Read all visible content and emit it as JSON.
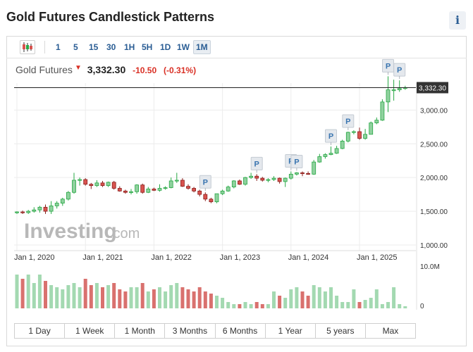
{
  "header": {
    "title": "Gold Futures Candlestick Patterns",
    "info_icon": "i"
  },
  "toolbar": {
    "chart_type_icon": "candlestick-icon",
    "intervals": [
      "1",
      "5",
      "15",
      "30",
      "1H",
      "5H",
      "1D",
      "1W",
      "1M"
    ],
    "active_interval": "1M"
  },
  "quote": {
    "name": "Gold Futures",
    "price": "3,332.30",
    "change": "-10.50",
    "change_pct": "(-0.31%)",
    "direction": "down"
  },
  "range_buttons": [
    "1 Day",
    "1 Week",
    "1 Month",
    "3 Months",
    "6 Months",
    "1 Year",
    "5 years",
    "Max"
  ],
  "watermark": {
    "brand": "Investing",
    "suffix": ".com"
  },
  "colors": {
    "up": "#8fd19e",
    "up_border": "#27a844",
    "down": "#d9534f",
    "vol_up": "#a3d9b1",
    "vol_down": "#d9716e",
    "price_line": "#222222"
  },
  "chart_data": {
    "type": "candlestick",
    "title": "",
    "ylim": [
      1000,
      3400
    ],
    "y_ticks": [
      "1,000.00",
      "1,500.00",
      "2,000.00",
      "2,500.00",
      "3,000.00"
    ],
    "y_tick_values": [
      1000,
      1500,
      2000,
      2500,
      3000
    ],
    "x_ticks": [
      "Jan 1, 2020",
      "Jan 1, 2021",
      "Jan 1, 2022",
      "Jan 1, 2023",
      "Jan 1, 2024",
      "Jan 1, 2025"
    ],
    "x_tick_index": [
      0,
      12,
      24,
      36,
      48,
      60
    ],
    "last_price": 3332.3,
    "last_price_label": "3,332.30",
    "volume_max_label": "10.0M",
    "volume_zero_label": "0",
    "pattern_marker_label": "P",
    "pattern_marker_index": [
      33,
      42,
      48,
      49,
      55,
      58,
      65,
      67
    ],
    "candles": [
      {
        "o": 1480,
        "h": 1500,
        "l": 1460,
        "c": 1490,
        "v": 8.0
      },
      {
        "o": 1490,
        "h": 1510,
        "l": 1460,
        "c": 1480,
        "v": 7.0
      },
      {
        "o": 1480,
        "h": 1520,
        "l": 1460,
        "c": 1500,
        "v": 8.0
      },
      {
        "o": 1500,
        "h": 1560,
        "l": 1480,
        "c": 1520,
        "v": 6.0
      },
      {
        "o": 1520,
        "h": 1580,
        "l": 1480,
        "c": 1560,
        "v": 8.0
      },
      {
        "o": 1560,
        "h": 1600,
        "l": 1460,
        "c": 1500,
        "v": 6.5
      },
      {
        "o": 1500,
        "h": 1650,
        "l": 1460,
        "c": 1580,
        "v": 5.5
      },
      {
        "o": 1580,
        "h": 1650,
        "l": 1540,
        "c": 1620,
        "v": 5.0
      },
      {
        "o": 1620,
        "h": 1700,
        "l": 1580,
        "c": 1680,
        "v": 4.5
      },
      {
        "o": 1680,
        "h": 1800,
        "l": 1660,
        "c": 1780,
        "v": 5.5
      },
      {
        "o": 1780,
        "h": 2070,
        "l": 1760,
        "c": 1960,
        "v": 6.0
      },
      {
        "o": 1960,
        "h": 2000,
        "l": 1880,
        "c": 1970,
        "v": 5.0
      },
      {
        "o": 1970,
        "h": 1990,
        "l": 1880,
        "c": 1900,
        "v": 7.0
      },
      {
        "o": 1900,
        "h": 1920,
        "l": 1830,
        "c": 1880,
        "v": 5.5
      },
      {
        "o": 1880,
        "h": 1960,
        "l": 1860,
        "c": 1920,
        "v": 6.0
      },
      {
        "o": 1920,
        "h": 1950,
        "l": 1860,
        "c": 1880,
        "v": 5.0
      },
      {
        "o": 1880,
        "h": 1940,
        "l": 1860,
        "c": 1930,
        "v": 5.5
      },
      {
        "o": 1930,
        "h": 1950,
        "l": 1820,
        "c": 1840,
        "v": 6.0
      },
      {
        "o": 1840,
        "h": 1870,
        "l": 1790,
        "c": 1800,
        "v": 4.5
      },
      {
        "o": 1800,
        "h": 1820,
        "l": 1760,
        "c": 1780,
        "v": 4.0
      },
      {
        "o": 1780,
        "h": 1830,
        "l": 1750,
        "c": 1790,
        "v": 5.0
      },
      {
        "o": 1790,
        "h": 1900,
        "l": 1760,
        "c": 1890,
        "v": 5.0
      },
      {
        "o": 1890,
        "h": 1910,
        "l": 1760,
        "c": 1780,
        "v": 6.0
      },
      {
        "o": 1780,
        "h": 1860,
        "l": 1770,
        "c": 1830,
        "v": 4.0
      },
      {
        "o": 1830,
        "h": 1850,
        "l": 1800,
        "c": 1810,
        "v": 4.5
      },
      {
        "o": 1810,
        "h": 1900,
        "l": 1790,
        "c": 1840,
        "v": 5.0
      },
      {
        "o": 1840,
        "h": 1870,
        "l": 1820,
        "c": 1850,
        "v": 4.0
      },
      {
        "o": 1850,
        "h": 2000,
        "l": 1840,
        "c": 1950,
        "v": 5.5
      },
      {
        "o": 1950,
        "h": 2070,
        "l": 1920,
        "c": 1960,
        "v": 6.0
      },
      {
        "o": 1960,
        "h": 1990,
        "l": 1860,
        "c": 1870,
        "v": 5.0
      },
      {
        "o": 1870,
        "h": 1900,
        "l": 1820,
        "c": 1840,
        "v": 4.5
      },
      {
        "o": 1840,
        "h": 1860,
        "l": 1780,
        "c": 1800,
        "v": 4.0
      },
      {
        "o": 1800,
        "h": 1820,
        "l": 1720,
        "c": 1750,
        "v": 5.0
      },
      {
        "o": 1750,
        "h": 1780,
        "l": 1650,
        "c": 1680,
        "v": 4.0
      },
      {
        "o": 1680,
        "h": 1700,
        "l": 1620,
        "c": 1640,
        "v": 3.5
      },
      {
        "o": 1640,
        "h": 1760,
        "l": 1620,
        "c": 1760,
        "v": 3.0
      },
      {
        "o": 1760,
        "h": 1820,
        "l": 1740,
        "c": 1800,
        "v": 2.5
      },
      {
        "o": 1800,
        "h": 1880,
        "l": 1790,
        "c": 1860,
        "v": 1.5
      },
      {
        "o": 1860,
        "h": 1960,
        "l": 1840,
        "c": 1950,
        "v": 1.0
      },
      {
        "o": 1950,
        "h": 1970,
        "l": 1890,
        "c": 1900,
        "v": 1.0
      },
      {
        "o": 1900,
        "h": 2010,
        "l": 1880,
        "c": 2000,
        "v": 1.5
      },
      {
        "o": 2000,
        "h": 2070,
        "l": 1980,
        "c": 2020,
        "v": 1.0
      },
      {
        "o": 2020,
        "h": 2050,
        "l": 1950,
        "c": 1990,
        "v": 1.5
      },
      {
        "o": 1990,
        "h": 2010,
        "l": 1940,
        "c": 1960,
        "v": 1.0
      },
      {
        "o": 1960,
        "h": 1990,
        "l": 1930,
        "c": 1970,
        "v": 1.0
      },
      {
        "o": 1970,
        "h": 2020,
        "l": 1950,
        "c": 1990,
        "v": 4.0
      },
      {
        "o": 1990,
        "h": 2000,
        "l": 1910,
        "c": 1940,
        "v": 3.0
      },
      {
        "o": 1940,
        "h": 2000,
        "l": 1860,
        "c": 1990,
        "v": 2.5
      },
      {
        "o": 1990,
        "h": 2090,
        "l": 1970,
        "c": 2050,
        "v": 4.5
      },
      {
        "o": 2050,
        "h": 2080,
        "l": 2030,
        "c": 2070,
        "v": 5.0
      },
      {
        "o": 2070,
        "h": 2090,
        "l": 2020,
        "c": 2060,
        "v": 4.0
      },
      {
        "o": 2060,
        "h": 2090,
        "l": 2040,
        "c": 2050,
        "v": 3.0
      },
      {
        "o": 2050,
        "h": 2260,
        "l": 2040,
        "c": 2230,
        "v": 5.5
      },
      {
        "o": 2230,
        "h": 2350,
        "l": 2220,
        "c": 2310,
        "v": 5.0
      },
      {
        "o": 2310,
        "h": 2360,
        "l": 2280,
        "c": 2340,
        "v": 4.0
      },
      {
        "o": 2340,
        "h": 2460,
        "l": 2330,
        "c": 2360,
        "v": 5.0
      },
      {
        "o": 2360,
        "h": 2470,
        "l": 2350,
        "c": 2430,
        "v": 3.0
      },
      {
        "o": 2430,
        "h": 2560,
        "l": 2420,
        "c": 2540,
        "v": 1.5
      },
      {
        "o": 2540,
        "h": 2680,
        "l": 2520,
        "c": 2670,
        "v": 1.5
      },
      {
        "o": 2670,
        "h": 2700,
        "l": 2640,
        "c": 2680,
        "v": 4.5
      },
      {
        "o": 2680,
        "h": 2740,
        "l": 2560,
        "c": 2580,
        "v": 1.5
      },
      {
        "o": 2580,
        "h": 2720,
        "l": 2560,
        "c": 2640,
        "v": 2.0
      },
      {
        "o": 2640,
        "h": 2830,
        "l": 2640,
        "c": 2810,
        "v": 2.5
      },
      {
        "o": 2810,
        "h": 2890,
        "l": 2790,
        "c": 2850,
        "v": 4.5
      },
      {
        "o": 2850,
        "h": 3160,
        "l": 2840,
        "c": 3120,
        "v": 1.0
      },
      {
        "o": 3120,
        "h": 3500,
        "l": 2970,
        "c": 3300,
        "v": 1.5
      },
      {
        "o": 3300,
        "h": 3450,
        "l": 3140,
        "c": 3300,
        "v": 5.0
      },
      {
        "o": 3300,
        "h": 3440,
        "l": 3270,
        "c": 3320,
        "v": 1.0
      },
      {
        "o": 3320,
        "h": 3360,
        "l": 3300,
        "c": 3332,
        "v": 0.5
      }
    ]
  }
}
